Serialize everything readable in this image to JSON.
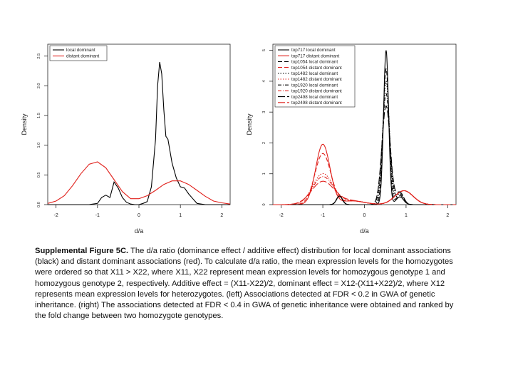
{
  "caption": {
    "label": "Supplemental Figure 5C.",
    "text": " The d/a ratio (dominance effect / additive effect) distribution for local dominant associations (black) and distant dominant associations (red). To calculate d/a ratio, the mean expression levels for the homozygotes were ordered so that X11 > X22, where X11, X22 represent mean expression levels for homozygous genotype 1 and homozygous genotype 2, respectively. Additive effect = (X11-X22)/2, dominant effect = X12-(X11+X22)/2, where X12 represents mean expression levels for heterozygotes. (left) Associations detected at FDR < 0.2 in GWA of genetic inheritance. (right) The associations detected at FDR < 0.4 in GWA of genetic inheritance were obtained and ranked by the fold change between two homozygote genotypes."
  },
  "colors": {
    "local": "#000000",
    "distant": "#e0201b"
  },
  "chart_data": [
    {
      "type": "line",
      "panel": "left",
      "xlabel": "d/a",
      "ylabel": "Density",
      "xlim": [
        -2.2,
        2.2
      ],
      "ylim": [
        0,
        2.7
      ],
      "xticks": [
        -2,
        -1,
        0,
        1,
        2
      ],
      "xtick_labels": [
        "-2",
        "-1",
        "0",
        "1",
        "2"
      ],
      "yticks": [
        0,
        0.5,
        1.0,
        1.5,
        2.0,
        2.5
      ],
      "ytick_labels": [
        "0.0",
        "0.5",
        "1.0",
        "1.5",
        "2.0",
        "2.5"
      ],
      "legend": "top-left",
      "series": [
        {
          "name": "local dominant",
          "color": "#000000",
          "dash": "solid",
          "x": [
            -2.2,
            -1.4,
            -1.2,
            -1.0,
            -0.9,
            -0.8,
            -0.7,
            -0.6,
            -0.5,
            -0.4,
            -0.3,
            -0.2,
            -0.1,
            0.0,
            0.1,
            0.2,
            0.3,
            0.4,
            0.45,
            0.5,
            0.55,
            0.6,
            0.65,
            0.7,
            0.8,
            0.9,
            1.0,
            1.1,
            1.2,
            1.3,
            1.4,
            1.6,
            2.2
          ],
          "y": [
            0,
            0,
            0,
            0.02,
            0.12,
            0.16,
            0.12,
            0.38,
            0.28,
            0.12,
            0.04,
            0.01,
            0,
            0,
            0.02,
            0.05,
            0.3,
            1.1,
            2.0,
            2.4,
            2.2,
            1.6,
            1.15,
            1.1,
            0.7,
            0.45,
            0.3,
            0.28,
            0.18,
            0.1,
            0.02,
            0,
            0
          ]
        },
        {
          "name": "distant dominant",
          "color": "#e0201b",
          "dash": "solid",
          "x": [
            -2.2,
            -2.0,
            -1.8,
            -1.6,
            -1.4,
            -1.2,
            -1.0,
            -0.8,
            -0.6,
            -0.4,
            -0.2,
            0.0,
            0.2,
            0.4,
            0.6,
            0.8,
            1.0,
            1.2,
            1.4,
            1.6,
            1.8,
            2.0,
            2.2
          ],
          "y": [
            0.02,
            0.06,
            0.15,
            0.32,
            0.52,
            0.68,
            0.72,
            0.62,
            0.42,
            0.22,
            0.1,
            0.1,
            0.15,
            0.24,
            0.34,
            0.4,
            0.4,
            0.34,
            0.24,
            0.14,
            0.06,
            0.03,
            0.01
          ]
        }
      ]
    },
    {
      "type": "line",
      "panel": "right",
      "xlabel": "d/a",
      "ylabel": "Density",
      "xlim": [
        -2.2,
        2.2
      ],
      "ylim": [
        0,
        5.2
      ],
      "xticks": [
        -2,
        -1,
        0,
        1,
        2
      ],
      "xtick_labels": [
        "-2",
        "-1",
        "0",
        "1",
        "2"
      ],
      "yticks": [
        0,
        1,
        2,
        3,
        4,
        5
      ],
      "ytick_labels": [
        "0",
        "1",
        "2",
        "3",
        "4",
        "5"
      ],
      "legend": "top-left",
      "series": [
        {
          "name": "top717 local dominant",
          "color": "#000000",
          "dash": "solid",
          "peak": 5.0,
          "sd": 0.06,
          "tail": 0.25
        },
        {
          "name": "top717 distant dominant",
          "color": "#e0201b",
          "dash": "solid",
          "peak": 1.95,
          "sd": 0.17
        },
        {
          "name": "top1054 local dominant",
          "color": "#000000",
          "dash": "6,3",
          "peak": 4.4,
          "sd": 0.07,
          "tail": 0.3
        },
        {
          "name": "top1054 distant dominant",
          "color": "#e0201b",
          "dash": "6,3",
          "peak": 1.65,
          "sd": 0.19
        },
        {
          "name": "top1482 local dominant",
          "color": "#000000",
          "dash": "1.5,2",
          "peak": 4.0,
          "sd": 0.08,
          "tail": 0.35
        },
        {
          "name": "top1482 distant dominant",
          "color": "#e0201b",
          "dash": "1.5,2",
          "peak": 1.0,
          "sd": 0.24
        },
        {
          "name": "top1920 local dominant",
          "color": "#000000",
          "dash": "5,2,1,2",
          "peak": 3.6,
          "sd": 0.09,
          "tail": 0.35
        },
        {
          "name": "top1920 distant dominant",
          "color": "#e0201b",
          "dash": "5,2,1,2",
          "peak": 0.9,
          "sd": 0.25
        },
        {
          "name": "top2498 local dominant",
          "color": "#000000",
          "dash": "10,3",
          "peak": 3.2,
          "sd": 0.1,
          "tail": 0.4
        },
        {
          "name": "top2498 distant dominant",
          "color": "#e0201b",
          "dash": "10,3",
          "peak": 0.75,
          "sd": 0.27
        }
      ]
    }
  ]
}
